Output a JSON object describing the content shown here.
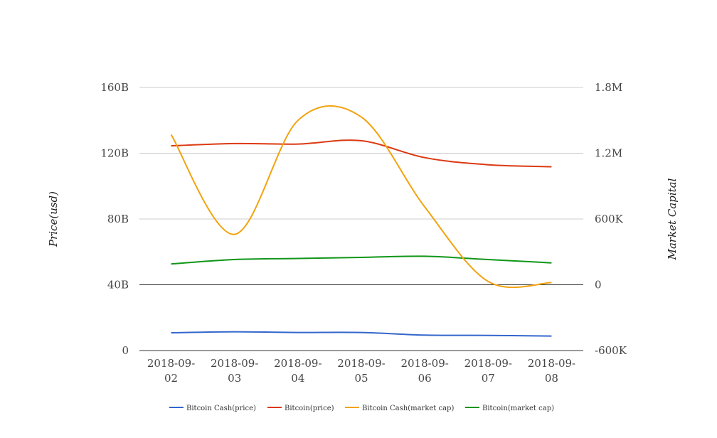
{
  "chart_data": {
    "type": "line",
    "categories": [
      "2018-09-02",
      "2018-09-03",
      "2018-09-04",
      "2018-09-05",
      "2018-09-06",
      "2018-09-07",
      "2018-09-08"
    ],
    "category_lines": [
      [
        "2018-09-",
        "02"
      ],
      [
        "2018-09-",
        "03"
      ],
      [
        "2018-09-",
        "04"
      ],
      [
        "2018-09-",
        "05"
      ],
      [
        "2018-09-",
        "06"
      ],
      [
        "2018-09-",
        "07"
      ],
      [
        "2018-09-",
        "08"
      ]
    ],
    "y_left": {
      "label": "Price(usd)",
      "range": [
        0,
        160000000000
      ],
      "ticks": [
        "0",
        "40B",
        "80B",
        "120B",
        "160B"
      ]
    },
    "y_right": {
      "label": "Market Capital",
      "range": [
        -600000,
        1800000
      ],
      "ticks": [
        "-600K",
        "0",
        "600K",
        "1.2M",
        "1.8M"
      ]
    },
    "grid": true,
    "legend_position": "bottom",
    "series": [
      {
        "name": "Bitcoin Cash(price)",
        "axis": "left",
        "color": "#3366cc",
        "values": [
          10800000000,
          11400000000,
          11000000000,
          11000000000,
          9400000000,
          9200000000,
          8800000000
        ]
      },
      {
        "name": "Bitcoin(price)",
        "axis": "left",
        "color": "#dc3912",
        "values": [
          124500000000,
          125900000000,
          125600000000,
          127600000000,
          117300000000,
          113000000000,
          111800000000
        ]
      },
      {
        "name": "Bitcoin Cash(market cap)",
        "axis": "right",
        "color": "#f2a30f",
        "values": [
          1370000,
          460000,
          1500000,
          1530000,
          710000,
          30000,
          20000
        ]
      },
      {
        "name": "Bitcoin(market cap)",
        "axis": "right",
        "color": "#109618",
        "values": [
          190000,
          230000,
          240000,
          250000,
          260000,
          230000,
          200000
        ]
      }
    ]
  }
}
